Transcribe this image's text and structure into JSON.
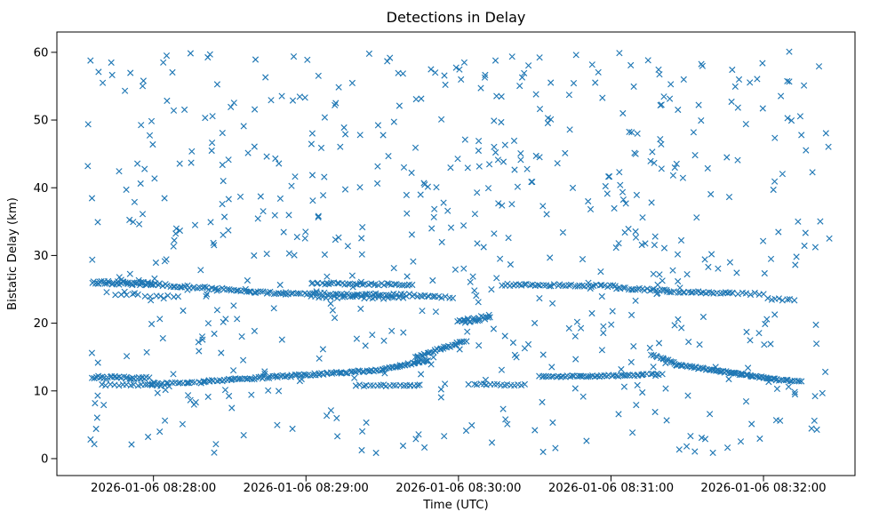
{
  "chart_data": {
    "type": "scatter",
    "title": "Detections in Delay",
    "xlabel": "Time (UTC)",
    "ylabel": "Bistatic Delay (km)",
    "marker": "x",
    "marker_color": "#1f77b4",
    "marker_half_px": 3.2,
    "marker_stroke_px": 1.15,
    "xlim": [
      22,
      336
    ],
    "ylim": [
      -2.5,
      63
    ],
    "yticks": [
      0,
      10,
      20,
      30,
      40,
      50,
      60
    ],
    "xticks": [
      {
        "t": 60,
        "label": "2026-01-06 08:28:00"
      },
      {
        "t": 120,
        "label": "2026-01-06 08:29:00"
      },
      {
        "t": 180,
        "label": "2026-01-06 08:30:00"
      },
      {
        "t": 240,
        "label": "2026-01-06 08:31:00"
      },
      {
        "t": 300,
        "label": "2026-01-06 08:32:00"
      }
    ],
    "time_axis_note": "t values are seconds after 2026-01-06 08:27:00 UTC as labeled on the x tick marks",
    "seed": 7,
    "clutter": {
      "count": 620,
      "t": [
        34,
        326
      ],
      "y": [
        0.7,
        60.2
      ]
    },
    "tracks": [
      {
        "t0": 36,
        "t1": 60,
        "y0": 26.0,
        "y1": 25.8,
        "n": 40,
        "jy": 0.25
      },
      {
        "t0": 45,
        "t1": 70,
        "y0": 24.2,
        "y1": 24.0,
        "n": 12,
        "jy": 0.2
      },
      {
        "t0": 55,
        "t1": 112,
        "y0": 25.9,
        "y1": 24.3,
        "n": 60,
        "jy": 0.18
      },
      {
        "t0": 112,
        "t1": 168,
        "y0": 24.4,
        "y1": 24.1,
        "n": 55,
        "jy": 0.18
      },
      {
        "t0": 122,
        "t1": 162,
        "y0": 25.9,
        "y1": 25.7,
        "n": 40,
        "jy": 0.15
      },
      {
        "t0": 122,
        "t1": 158,
        "y0": 23.9,
        "y1": 23.7,
        "n": 25,
        "jy": 0.15
      },
      {
        "t0": 168,
        "t1": 178,
        "y0": 24.0,
        "y1": 23.8,
        "n": 8,
        "jy": 0.15
      },
      {
        "t0": 197,
        "t1": 242,
        "y0": 25.7,
        "y1": 25.5,
        "n": 42,
        "jy": 0.15
      },
      {
        "t0": 242,
        "t1": 262,
        "y0": 25.2,
        "y1": 24.8,
        "n": 22,
        "jy": 0.15
      },
      {
        "t0": 262,
        "t1": 288,
        "y0": 24.7,
        "y1": 24.4,
        "n": 26,
        "jy": 0.15
      },
      {
        "t0": 288,
        "t1": 300,
        "y0": 24.4,
        "y1": 24.3,
        "n": 8,
        "jy": 0.15
      },
      {
        "t0": 302,
        "t1": 312,
        "y0": 23.6,
        "y1": 23.4,
        "n": 8,
        "jy": 0.15
      },
      {
        "t0": 36,
        "t1": 58,
        "y0": 12.0,
        "y1": 11.9,
        "n": 30,
        "jy": 0.2
      },
      {
        "t0": 40,
        "t1": 66,
        "y0": 10.9,
        "y1": 10.8,
        "n": 18,
        "jy": 0.15
      },
      {
        "t0": 58,
        "t1": 80,
        "y0": 11.0,
        "y1": 11.3,
        "n": 20,
        "jy": 0.15
      },
      {
        "t0": 80,
        "t1": 150,
        "y0": 11.4,
        "y1": 13.1,
        "n": 90,
        "jy": 0.15
      },
      {
        "t0": 150,
        "t1": 168,
        "y0": 13.2,
        "y1": 14.5,
        "n": 30,
        "jy": 0.12
      },
      {
        "t0": 163,
        "t1": 183,
        "y0": 15.0,
        "y1": 17.4,
        "n": 30,
        "jy": 0.15
      },
      {
        "t0": 180,
        "t1": 192,
        "y0": 20.2,
        "y1": 20.9,
        "n": 22,
        "jy": 0.3
      },
      {
        "t0": 140,
        "t1": 165,
        "y0": 10.8,
        "y1": 10.8,
        "n": 20,
        "jy": 0.12
      },
      {
        "t0": 186,
        "t1": 206,
        "y0": 11.0,
        "y1": 10.9,
        "n": 16,
        "jy": 0.12
      },
      {
        "t0": 212,
        "t1": 252,
        "y0": 12.1,
        "y1": 12.3,
        "n": 45,
        "jy": 0.12
      },
      {
        "t0": 252,
        "t1": 260,
        "y0": 12.4,
        "y1": 12.5,
        "n": 8,
        "jy": 0.12
      },
      {
        "t0": 256,
        "t1": 265,
        "y0": 15.4,
        "y1": 14.2,
        "n": 12,
        "jy": 0.12
      },
      {
        "t0": 265,
        "t1": 305,
        "y0": 13.9,
        "y1": 11.7,
        "n": 70,
        "jy": 0.12
      },
      {
        "t0": 305,
        "t1": 315,
        "y0": 11.6,
        "y1": 11.4,
        "n": 12,
        "jy": 0.12
      }
    ],
    "legend": null,
    "grid": false
  }
}
